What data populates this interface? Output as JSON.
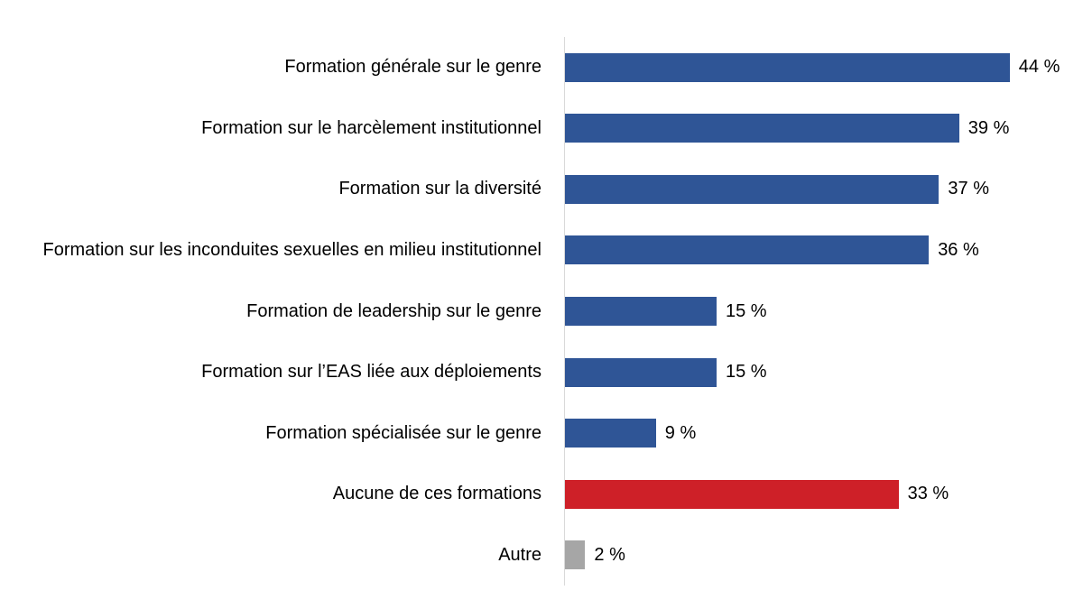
{
  "chart_data": {
    "type": "bar",
    "orientation": "horizontal",
    "title": "",
    "xlabel": "",
    "ylabel": "",
    "xlim": [
      0,
      48
    ],
    "grid": false,
    "legend": false,
    "categories": [
      "Formation générale sur le genre",
      "Formation sur le harcèlement institutionnel",
      "Formation sur la diversité",
      "Formation sur les inconduites sexuelles en milieu institutionnel",
      "Formation de leadership sur le genre",
      "Formation sur l’EAS liée aux déploiements",
      "Formation spécialisée sur le genre",
      "Aucune de ces formations",
      "Autre"
    ],
    "values": [
      44,
      39,
      37,
      36,
      15,
      15,
      9,
      33,
      2
    ],
    "value_labels": [
      "44 %",
      "39 %",
      "37 %",
      "36 %",
      "15 %",
      "15 %",
      "9 %",
      "33 %",
      "2 %"
    ],
    "colors": [
      "#2F5596",
      "#2F5596",
      "#2F5596",
      "#2F5596",
      "#2F5596",
      "#2F5596",
      "#2F5596",
      "#CE2028",
      "#A6A6A6"
    ],
    "bar_color_primary": "#2F5596",
    "bar_color_negative": "#CE2028",
    "bar_color_other": "#A6A6A6",
    "axis_color": "#D9D9D9",
    "text_color": "#000000"
  }
}
